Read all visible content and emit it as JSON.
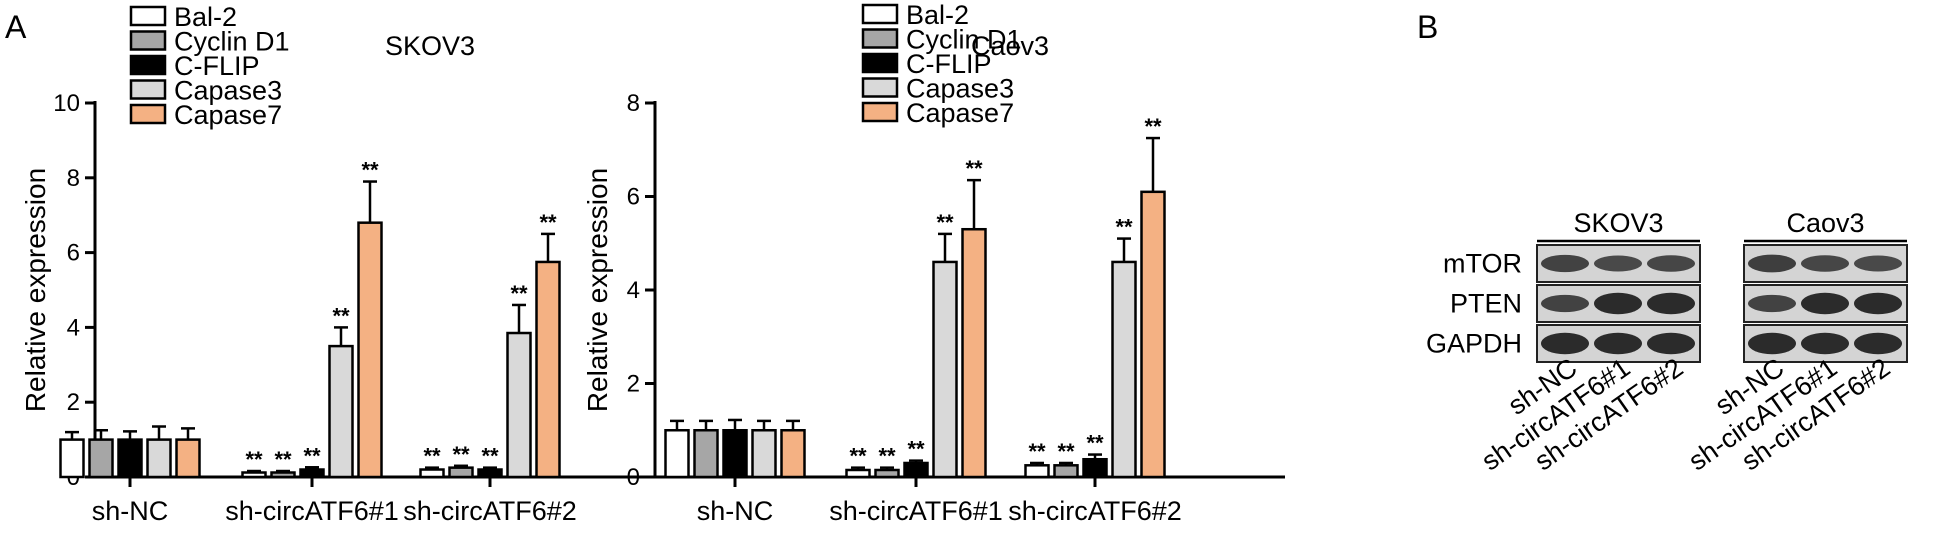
{
  "panels": {
    "a": "A",
    "b": "B"
  },
  "chart_data": [
    {
      "type": "bar",
      "title": "SKOV3",
      "ylabel": "Relative expression",
      "xlabel": "",
      "ylim": [
        0,
        10
      ],
      "yticks": [
        0,
        2,
        4,
        6,
        8,
        10
      ],
      "categories": [
        "sh-NC",
        "sh-circATF6#1",
        "sh-circATF6#2"
      ],
      "series": [
        {
          "name": "Bal-2",
          "color": "#ffffff",
          "values": [
            1.0,
            0.12,
            0.2
          ],
          "errors": [
            0.2,
            0.04,
            0.05
          ],
          "sig": [
            "",
            "**",
            "**"
          ]
        },
        {
          "name": "Cyclin D1",
          "color": "#a6a6a6",
          "values": [
            1.0,
            0.12,
            0.25
          ],
          "errors": [
            0.25,
            0.04,
            0.05
          ],
          "sig": [
            "",
            "**",
            "**"
          ]
        },
        {
          "name": "C-FLIP",
          "color": "#000000",
          "values": [
            1.0,
            0.2,
            0.2
          ],
          "errors": [
            0.22,
            0.06,
            0.05
          ],
          "sig": [
            "",
            "**",
            "**"
          ]
        },
        {
          "name": "Capase3",
          "color": "#d9d9d9",
          "values": [
            1.0,
            3.5,
            3.85
          ],
          "errors": [
            0.35,
            0.5,
            0.75
          ],
          "sig": [
            "",
            "**",
            "**"
          ]
        },
        {
          "name": "Capase7",
          "color": "#f4b183",
          "values": [
            1.0,
            6.8,
            5.75
          ],
          "errors": [
            0.3,
            1.1,
            0.75
          ],
          "sig": [
            "",
            "**",
            "**"
          ]
        }
      ]
    },
    {
      "type": "bar",
      "title": "Caov3",
      "ylabel": "Relative expression",
      "xlabel": "",
      "ylim": [
        0,
        8
      ],
      "yticks": [
        0,
        2,
        4,
        6,
        8
      ],
      "categories": [
        "sh-NC",
        "sh-circATF6#1",
        "sh-circATF6#2"
      ],
      "series": [
        {
          "name": "Bal-2",
          "color": "#ffffff",
          "values": [
            1.0,
            0.15,
            0.25
          ],
          "errors": [
            0.2,
            0.05,
            0.05
          ],
          "sig": [
            "",
            "**",
            "**"
          ]
        },
        {
          "name": "Cyclin D1",
          "color": "#a6a6a6",
          "values": [
            1.0,
            0.15,
            0.25
          ],
          "errors": [
            0.2,
            0.05,
            0.05
          ],
          "sig": [
            "",
            "**",
            "**"
          ]
        },
        {
          "name": "C-FLIP",
          "color": "#000000",
          "values": [
            1.0,
            0.3,
            0.38
          ],
          "errors": [
            0.22,
            0.05,
            0.1
          ],
          "sig": [
            "",
            "**",
            "**"
          ]
        },
        {
          "name": "Capase3",
          "color": "#d9d9d9",
          "values": [
            1.0,
            4.6,
            4.6
          ],
          "errors": [
            0.2,
            0.6,
            0.5
          ],
          "sig": [
            "",
            "**",
            "**"
          ]
        },
        {
          "name": "Capase7",
          "color": "#f4b183",
          "values": [
            1.0,
            5.3,
            6.1
          ],
          "errors": [
            0.2,
            1.05,
            1.15
          ],
          "sig": [
            "",
            "**",
            "**"
          ]
        }
      ]
    }
  ],
  "western_blot": {
    "cell_lines": [
      "SKOV3",
      "Caov3"
    ],
    "proteins": [
      {
        "name": "mTOR",
        "intensity": [
          0.6,
          0.5,
          0.55,
          0.65,
          0.55,
          0.5
        ]
      },
      {
        "name": "PTEN",
        "intensity": [
          0.6,
          0.95,
          0.95,
          0.6,
          0.95,
          0.95
        ]
      },
      {
        "name": "GAPDH",
        "intensity": [
          0.95,
          0.95,
          0.95,
          0.95,
          0.95,
          0.95
        ]
      }
    ],
    "lane_labels": [
      "sh-NC",
      "sh-circATF6#1",
      "sh-circATF6#2"
    ]
  }
}
